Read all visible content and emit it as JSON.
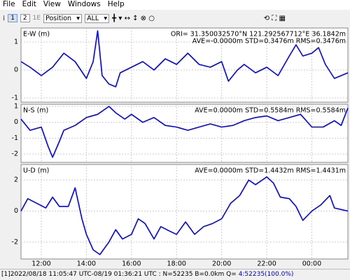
{
  "menu": [
    "File",
    "Edit",
    "View",
    "Windows",
    "Help"
  ],
  "toolbar": {
    "buttons": [
      "1",
      "2",
      "1E"
    ],
    "plot_type": "Position",
    "satellite": "ALL"
  },
  "chart_data": [
    {
      "type": "line",
      "title": "E-W (m)",
      "annotations": [
        "ORI= 31.350032570°N  121.292567712°E 36.1842m",
        "AVE=-0.0000m STD=0.3476m RMS=0.3476m"
      ],
      "color": "#0000ff",
      "grid": true,
      "x": [
        11.1,
        11.5,
        12,
        12.5,
        13,
        13.5,
        14,
        14.3,
        14.5,
        14.7,
        15,
        15.3,
        15.5,
        16,
        16.5,
        17,
        17.5,
        18,
        18.5,
        19,
        19.5,
        20,
        20.3,
        20.7,
        21,
        21.5,
        22,
        22.5,
        23,
        23.3,
        23.6,
        24,
        24.3,
        24.6,
        25,
        25.3,
        25.6
      ],
      "values": [
        0.3,
        0.1,
        -0.2,
        0.1,
        0.6,
        0.3,
        -0.3,
        0.3,
        1.4,
        -0.2,
        -0.5,
        -0.6,
        -0.1,
        0.1,
        0.3,
        0,
        0.4,
        0.2,
        0.6,
        0.2,
        0.1,
        0.3,
        -0.4,
        0,
        0.2,
        -0.1,
        0.1,
        -0.2,
        0.5,
        0.9,
        0.5,
        0.6,
        0.8,
        0.2,
        -0.3,
        -0.2,
        -0.1
      ],
      "ylim": [
        -1.15,
        1.5
      ],
      "yticks": [
        -1,
        0,
        1
      ]
    },
    {
      "type": "line",
      "title": "N-S (m)",
      "annotations": [
        "AVE=0.0000m STD=0.5584m RMS=0.5584m"
      ],
      "color": "#0000ff",
      "grid": true,
      "x": [
        11.1,
        11.5,
        12,
        12.3,
        12.5,
        12.8,
        13,
        13.5,
        14,
        14.5,
        15,
        15.3,
        15.7,
        16,
        16.5,
        17,
        17.5,
        18,
        18.5,
        19,
        19.5,
        20,
        20.5,
        21,
        21.5,
        22,
        22.5,
        23,
        23.5,
        24,
        24.5,
        25,
        25.3,
        25.6
      ],
      "values": [
        0.2,
        -0.5,
        -0.3,
        -1.5,
        -2.2,
        -1.2,
        -0.5,
        -0.2,
        0.3,
        0.5,
        1,
        0.6,
        0.2,
        0.5,
        0,
        0.3,
        -0.2,
        -0.3,
        -0.5,
        -0.3,
        -0.1,
        -0.3,
        -0.2,
        0.1,
        0.3,
        0.4,
        0.1,
        0.3,
        0.5,
        -0.3,
        -0.3,
        0.1,
        -0.2,
        0.9
      ],
      "ylim": [
        -2.52,
        1.13
      ],
      "yticks": [
        -2,
        -1,
        0,
        1
      ]
    },
    {
      "type": "line",
      "title": "U-D (m)",
      "annotations": [
        "AVE=0.0000m STD=1.4432m RMS=1.4431m"
      ],
      "color": "#0000ff",
      "grid": true,
      "x": [
        11.1,
        11.4,
        11.8,
        12.2,
        12.5,
        12.8,
        13.2,
        13.5,
        13.8,
        14,
        14.3,
        14.6,
        15,
        15.3,
        15.6,
        16,
        16.3,
        16.6,
        17,
        17.3,
        17.7,
        18,
        18.4,
        18.8,
        19.2,
        19.6,
        20,
        20.4,
        20.8,
        21.2,
        21.5,
        21.8,
        22,
        22.3,
        22.6,
        23,
        23.3,
        23.6,
        24,
        24.4,
        24.8,
        25,
        25.3,
        25.6
      ],
      "values": [
        0,
        0.8,
        0.5,
        0.2,
        0.9,
        0.3,
        0.3,
        1.5,
        -0.5,
        -1.5,
        -2.5,
        -2.8,
        -2,
        -1.2,
        -1.8,
        -1.5,
        -0.5,
        -0.8,
        -1.8,
        -1,
        -1.3,
        -1.5,
        -0.7,
        -1.5,
        -1,
        -0.8,
        -0.5,
        0.5,
        1,
        2,
        1.7,
        2,
        2.2,
        1.8,
        0.9,
        0.8,
        0.3,
        -0.6,
        0,
        0.4,
        1,
        0.2,
        0.1,
        0
      ],
      "ylim": [
        -3.09,
        3.0
      ],
      "yticks": [
        -2,
        0,
        2
      ],
      "xlim": [
        11.1,
        25.6
      ],
      "xticks": [
        {
          "value": 12,
          "label": "12:00"
        },
        {
          "value": 14,
          "label": "14:00"
        },
        {
          "value": 16,
          "label": "16:00"
        },
        {
          "value": 18,
          "label": "18:00"
        },
        {
          "value": 20,
          "label": "20:00"
        },
        {
          "value": 22,
          "label": "22:00"
        },
        {
          "value": 24,
          "label": "00:00"
        }
      ]
    }
  ],
  "status": {
    "text": "[1]2022/08/18 11:05:47 UTC-08/19 01:36:21 UTC : N=52235 B=0.0km Q= ",
    "quality": "4:52235(100.0%)"
  }
}
